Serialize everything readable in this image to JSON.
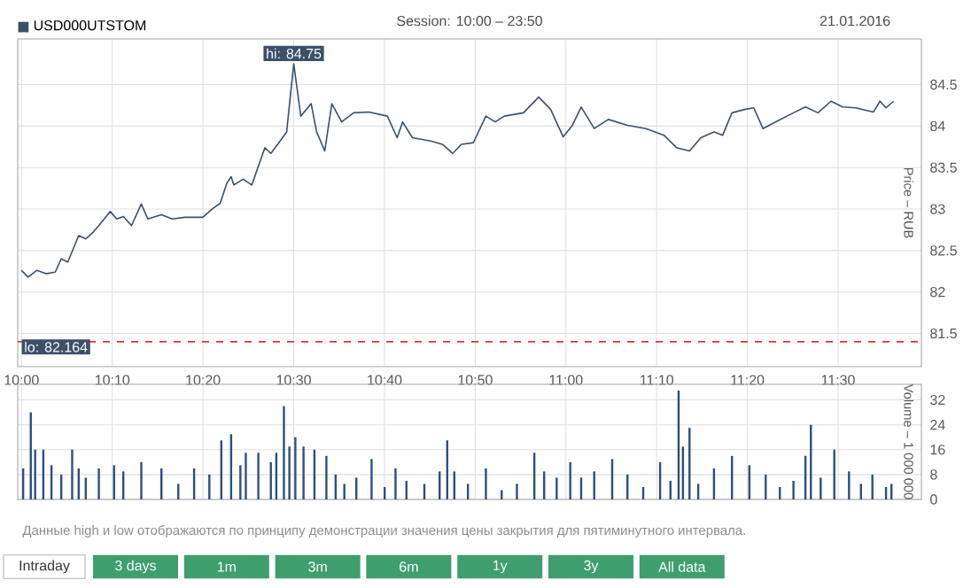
{
  "chart_data": [
    {
      "type": "line",
      "subtitle": "Session: 10:00 – 23:50",
      "ylabel": "Price – RUB",
      "legend": "top left",
      "grid": true,
      "xlim": [
        9.993,
        11.653
      ],
      "ylim": [
        81.1,
        85.05
      ],
      "xticks": [
        {
          "value": 10,
          "label": "10:00"
        },
        {
          "value": 10.1667,
          "label": "10:10"
        },
        {
          "value": 10.3333,
          "label": "10:20"
        },
        {
          "value": 10.5,
          "label": "10:30"
        },
        {
          "value": 10.6667,
          "label": "10:40"
        },
        {
          "value": 10.8333,
          "label": "10:50"
        },
        {
          "value": 11,
          "label": "11:00"
        },
        {
          "value": 11.1667,
          "label": "11:10"
        },
        {
          "value": 11.3333,
          "label": "11:20"
        },
        {
          "value": 11.5,
          "label": "11:30"
        }
      ],
      "yticks": [
        81.5,
        82,
        82.5,
        83,
        83.5,
        84,
        84.5
      ],
      "ref_lines": [
        {
          "axis": "y",
          "value": 81.4,
          "color": "#e03030",
          "line_style": "dashed"
        }
      ],
      "annotations": [
        "21.01.2016",
        {
          "text": "hi: 84.75",
          "x": 10.5,
          "y": 84.75
        },
        "lo: 82.164"
      ],
      "series": [
        {
          "name": "USD000UTSTOM",
          "color": "#3c5068",
          "x": [
            10.0,
            10.012,
            10.028,
            10.045,
            10.062,
            10.073,
            10.085,
            10.105,
            10.118,
            10.13,
            10.142,
            10.163,
            10.175,
            10.187,
            10.202,
            10.22,
            10.232,
            10.257,
            10.277,
            10.3,
            10.333,
            10.35,
            10.365,
            10.377,
            10.385,
            10.39,
            10.407,
            10.423,
            10.447,
            10.458,
            10.475,
            10.487,
            10.5,
            10.513,
            10.532,
            10.542,
            10.557,
            10.57,
            10.588,
            10.61,
            10.638,
            10.672,
            10.69,
            10.7,
            10.718,
            10.752,
            10.773,
            10.792,
            10.808,
            10.83,
            10.853,
            10.87,
            10.887,
            10.922,
            10.95,
            10.972,
            10.995,
            11.012,
            11.028,
            11.052,
            11.078,
            11.113,
            11.147,
            11.18,
            11.203,
            11.227,
            11.248,
            11.272,
            11.288,
            11.305,
            11.328,
            11.345,
            11.362,
            11.385,
            11.418,
            11.44,
            11.463,
            11.487,
            11.508,
            11.532,
            11.565,
            11.577,
            11.588,
            11.602
          ],
          "values": [
            82.26,
            82.18,
            82.26,
            82.22,
            82.24,
            82.4,
            82.36,
            82.68,
            82.64,
            82.71,
            82.8,
            82.97,
            82.88,
            82.91,
            82.8,
            83.06,
            82.88,
            82.93,
            82.88,
            82.9,
            82.9,
            83.0,
            83.07,
            83.31,
            83.39,
            83.29,
            83.36,
            83.29,
            83.74,
            83.67,
            83.82,
            83.93,
            84.75,
            84.12,
            84.27,
            83.93,
            83.7,
            84.27,
            84.05,
            84.16,
            84.17,
            84.12,
            83.86,
            84.05,
            83.86,
            83.82,
            83.78,
            83.67,
            83.78,
            83.8,
            84.12,
            84.05,
            84.12,
            84.16,
            84.35,
            84.2,
            83.87,
            84.01,
            84.23,
            83.97,
            84.08,
            84.01,
            83.97,
            83.89,
            83.74,
            83.7,
            83.86,
            83.93,
            83.89,
            84.16,
            84.2,
            84.22,
            83.97,
            84.05,
            84.16,
            84.23,
            84.16,
            84.3,
            84.23,
            84.22,
            84.17,
            84.3,
            84.22,
            84.3
          ]
        }
      ]
    },
    {
      "type": "bar",
      "ylabel": "Volume – 1 000 000",
      "grid": true,
      "tick_labels": "y",
      "color": "#2c4f7c",
      "xlim": [
        9.993,
        11.653
      ],
      "ylim": [
        0,
        37
      ],
      "xticks": [
        {
          "value": 10,
          "label": null
        },
        {
          "value": 10.1667,
          "label": null
        },
        {
          "value": 10.3333,
          "label": null
        },
        {
          "value": 10.5,
          "label": null
        },
        {
          "value": 10.6667,
          "label": null
        },
        {
          "value": 10.8333,
          "label": null
        },
        {
          "value": 11,
          "label": null
        },
        {
          "value": 11.1667,
          "label": null
        },
        {
          "value": 11.3333,
          "label": null
        },
        {
          "value": 11.5,
          "label": null
        }
      ],
      "yticks": [
        0,
        8,
        16,
        24,
        32
      ],
      "annotations": [
        "Данные high и low отображаются по принципу демонстрации значения цены закрытия для пятиминутного интервала.",
        "Intraday",
        "3 days",
        "1m",
        "3m",
        "6m",
        "1y",
        "3y",
        "All data"
      ],
      "x": [
        10.003,
        10.017,
        10.025,
        10.04,
        10.055,
        10.073,
        10.093,
        10.105,
        10.118,
        10.142,
        10.17,
        10.187,
        10.22,
        10.257,
        10.288,
        10.317,
        10.345,
        10.367,
        10.385,
        10.402,
        10.412,
        10.435,
        10.458,
        10.468,
        10.482,
        10.492,
        10.503,
        10.518,
        10.538,
        10.56,
        10.577,
        10.593,
        10.615,
        10.643,
        10.667,
        10.687,
        10.707,
        10.74,
        10.768,
        10.782,
        10.795,
        10.82,
        10.853,
        10.882,
        10.91,
        10.942,
        10.96,
        10.983,
        11.008,
        11.028,
        11.052,
        11.085,
        11.113,
        11.142,
        11.173,
        11.192,
        11.207,
        11.215,
        11.227,
        11.243,
        11.272,
        11.305,
        11.337,
        11.367,
        11.393,
        11.418,
        11.44,
        11.45,
        11.468,
        11.493,
        11.52,
        11.542,
        11.563,
        11.588,
        11.598
      ],
      "values": [
        10,
        28,
        16,
        16,
        11,
        8,
        16,
        10,
        7,
        10,
        11,
        9,
        12,
        10,
        5,
        10,
        8,
        19,
        21,
        11,
        15,
        15,
        12,
        15,
        30,
        17,
        20,
        17,
        16,
        14,
        8,
        5,
        7,
        13,
        4,
        10,
        6,
        5,
        9,
        19,
        9,
        5,
        10,
        3,
        5,
        15,
        9,
        7,
        12,
        7,
        9,
        13,
        8,
        4,
        12,
        6,
        35,
        17,
        23,
        5,
        10,
        14,
        11,
        8,
        4,
        6,
        14,
        24,
        7,
        16,
        9,
        5,
        8,
        4,
        5
      ]
    }
  ]
}
